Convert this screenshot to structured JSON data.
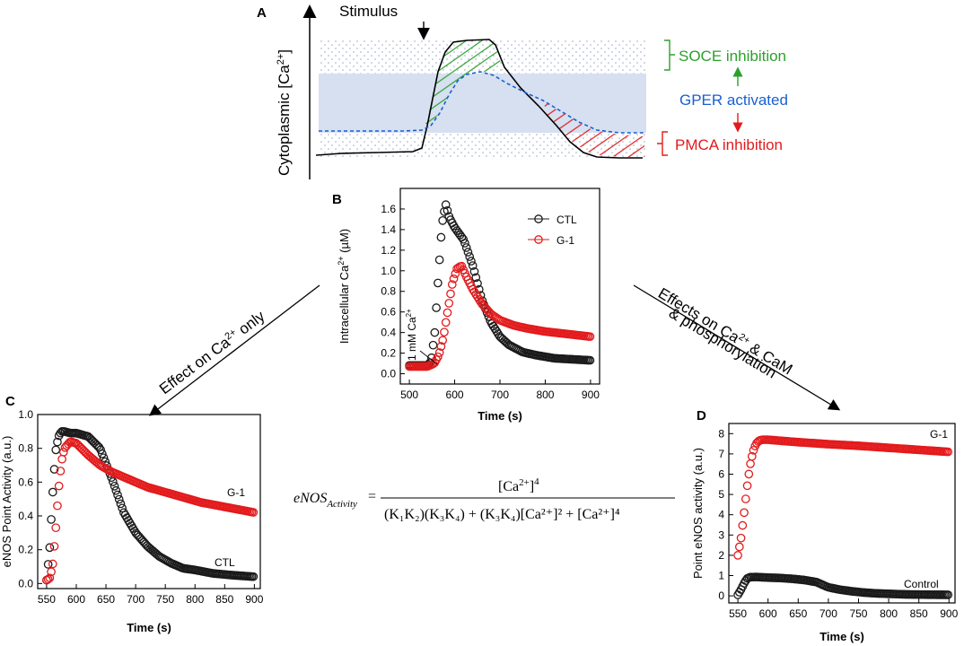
{
  "colors": {
    "black": "#1a1a1a",
    "red": "#e31a1c",
    "green": "#2ca02c",
    "blue": "#1a5fd0",
    "band": "#d6e0f0",
    "dots": "#9aa8c4"
  },
  "panel_a": {
    "letter": "A",
    "y_axis_label": "Cytoplasmic [Ca",
    "y_axis_sup": "2+",
    "y_axis_close": "]",
    "stimulus": "Stimulus",
    "soce": "SOCE inhibition",
    "gper": "GPER activated",
    "pmca": "PMCA inhibition"
  },
  "arrows": {
    "left_label_main": "Effect on Ca",
    "left_label_sup": "2+",
    "left_label_end": " only",
    "right_label_line1_main": "Effects on Ca",
    "right_label_line1_sup": "2+",
    "right_label_line1_end": " & CaM",
    "right_label_line2": "& phosphorylation"
  },
  "equation": {
    "lhs_main": "eNOS",
    "lhs_sub": "Activity",
    "numerator": "[Ca",
    "numerator_sup": "2+",
    "numerator_close": "]",
    "numerator_pow": "4",
    "denominator": "(K₁K₂)(K₃K₄) + (K₃K₄)[Ca²⁺]² + [Ca²⁺]⁴"
  },
  "chart_data": [
    {
      "id": "B",
      "type": "scatter",
      "title": "",
      "xlabel": "Time (s)",
      "ylabel": "Intracellular Ca2+ (µM)",
      "xlim": [
        480,
        920
      ],
      "ylim": [
        -0.1,
        1.8
      ],
      "xticks": [
        500,
        600,
        700,
        800,
        900
      ],
      "yticks": [
        0.0,
        0.2,
        0.4,
        0.6,
        0.8,
        1.0,
        1.2,
        1.4,
        1.6
      ],
      "legend": [
        "CTL",
        "G-1"
      ],
      "legend_position": "top-right",
      "annotation": "1 mM Ca2+",
      "series": [
        {
          "name": "CTL",
          "color": "#1a1a1a",
          "x": [
            500,
            520,
            540,
            548,
            556,
            564,
            572,
            580,
            588,
            600,
            620,
            640,
            660,
            680,
            700,
            720,
            750,
            780,
            820,
            860,
            900
          ],
          "y": [
            0.08,
            0.08,
            0.08,
            0.12,
            0.4,
            0.95,
            1.45,
            1.65,
            1.52,
            1.42,
            1.3,
            1.05,
            0.72,
            0.5,
            0.36,
            0.28,
            0.21,
            0.18,
            0.15,
            0.14,
            0.13
          ]
        },
        {
          "name": "G-1",
          "color": "#e31a1c",
          "x": [
            500,
            520,
            540,
            555,
            565,
            575,
            585,
            595,
            605,
            615,
            625,
            640,
            660,
            680,
            700,
            730,
            760,
            800,
            840,
            880,
            900
          ],
          "y": [
            0.07,
            0.07,
            0.07,
            0.1,
            0.18,
            0.35,
            0.62,
            0.88,
            1.02,
            1.05,
            0.95,
            0.82,
            0.68,
            0.58,
            0.52,
            0.47,
            0.44,
            0.41,
            0.39,
            0.37,
            0.36
          ]
        }
      ]
    },
    {
      "id": "C",
      "type": "scatter",
      "title": "",
      "xlabel": "Time (s)",
      "ylabel": "eNOS Point Activity (a.u.)",
      "xlim": [
        535,
        910
      ],
      "ylim": [
        -0.03,
        1.0
      ],
      "xticks": [
        550,
        600,
        650,
        700,
        750,
        800,
        850,
        900
      ],
      "yticks": [
        0.0,
        0.2,
        0.4,
        0.6,
        0.8,
        1.0
      ],
      "series": [
        {
          "name": "CTL",
          "color": "#1a1a1a",
          "x": [
            550,
            555,
            560,
            565,
            570,
            575,
            580,
            590,
            600,
            620,
            640,
            660,
            680,
            700,
            720,
            740,
            760,
            780,
            800,
            830,
            860,
            900
          ],
          "y": [
            0.02,
            0.2,
            0.52,
            0.78,
            0.87,
            0.9,
            0.9,
            0.89,
            0.89,
            0.87,
            0.8,
            0.62,
            0.42,
            0.3,
            0.22,
            0.16,
            0.12,
            0.09,
            0.08,
            0.06,
            0.05,
            0.04
          ]
        },
        {
          "name": "G-1",
          "color": "#e31a1c",
          "x": [
            550,
            555,
            560,
            565,
            570,
            575,
            580,
            590,
            600,
            620,
            640,
            660,
            680,
            700,
            720,
            750,
            780,
            810,
            840,
            870,
            900
          ],
          "y": [
            0.02,
            0.03,
            0.1,
            0.3,
            0.55,
            0.72,
            0.8,
            0.84,
            0.83,
            0.76,
            0.7,
            0.66,
            0.63,
            0.6,
            0.57,
            0.54,
            0.51,
            0.48,
            0.46,
            0.44,
            0.42
          ]
        }
      ],
      "labels": {
        "G-1": "G-1",
        "CTL": "CTL"
      }
    },
    {
      "id": "D",
      "type": "scatter",
      "title": "",
      "xlabel": "Time (s)",
      "ylabel": "Point eNOS activity (a.u.)",
      "xlim": [
        535,
        910
      ],
      "ylim": [
        -0.35,
        8.5
      ],
      "xticks": [
        550,
        600,
        650,
        700,
        750,
        800,
        850,
        900
      ],
      "yticks": [
        0,
        1,
        2,
        3,
        4,
        5,
        6,
        7,
        8
      ],
      "series": [
        {
          "name": "Control",
          "color": "#1a1a1a",
          "x": [
            550,
            555,
            560,
            565,
            570,
            580,
            600,
            620,
            640,
            660,
            680,
            690,
            700,
            720,
            740,
            760,
            780,
            800,
            830,
            860,
            900
          ],
          "y": [
            0.05,
            0.3,
            0.6,
            0.85,
            0.92,
            0.93,
            0.9,
            0.88,
            0.84,
            0.78,
            0.68,
            0.55,
            0.42,
            0.3,
            0.22,
            0.16,
            0.12,
            0.1,
            0.07,
            0.06,
            0.05
          ]
        },
        {
          "name": "G-1",
          "color": "#e31a1c",
          "x": [
            550,
            555,
            560,
            565,
            570,
            575,
            580,
            585,
            590,
            600,
            620,
            650,
            700,
            750,
            800,
            850,
            900
          ],
          "y": [
            2.0,
            2.8,
            4.0,
            5.3,
            6.4,
            7.1,
            7.5,
            7.65,
            7.7,
            7.7,
            7.65,
            7.58,
            7.48,
            7.4,
            7.3,
            7.2,
            7.1
          ]
        }
      ],
      "labels": {
        "G-1": "G-1",
        "Control": "Control"
      }
    }
  ]
}
